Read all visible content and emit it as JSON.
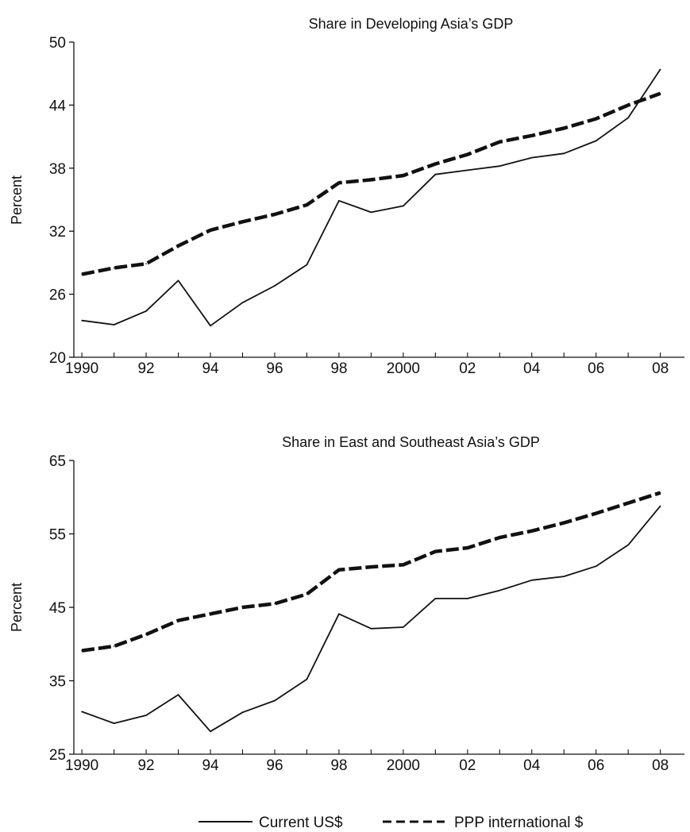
{
  "chart_data": [
    {
      "type": "line",
      "title": "Share in Developing Asia’s GDP",
      "ylabel": "Percent",
      "xlabel": "",
      "x": [
        1990,
        1991,
        1992,
        1993,
        1994,
        1995,
        1996,
        1997,
        1998,
        1999,
        2000,
        2001,
        2002,
        2003,
        2004,
        2005,
        2006,
        2007,
        2008
      ],
      "xtick_values": [
        1990,
        1992,
        1994,
        1996,
        1998,
        2000,
        2002,
        2004,
        2006,
        2008
      ],
      "xtick_labels": [
        "1990",
        "92",
        "94",
        "96",
        "98",
        "2000",
        "02",
        "04",
        "06",
        "08"
      ],
      "ylim": [
        20,
        50
      ],
      "yticks": [
        20,
        26,
        32,
        38,
        44,
        50
      ],
      "series": [
        {
          "name": "Current US$",
          "style": "solid",
          "values": [
            23.5,
            23.1,
            24.4,
            27.3,
            23.0,
            25.2,
            26.8,
            28.8,
            34.9,
            33.8,
            34.4,
            37.4,
            37.8,
            38.2,
            39.0,
            39.4,
            40.6,
            42.8,
            47.4
          ]
        },
        {
          "name": "PPP international $",
          "style": "dashed",
          "values": [
            27.9,
            28.5,
            28.9,
            30.6,
            32.1,
            32.9,
            33.6,
            34.5,
            36.6,
            36.9,
            37.3,
            38.4,
            39.3,
            40.5,
            41.1,
            41.8,
            42.7,
            44.0,
            45.1
          ]
        }
      ]
    },
    {
      "type": "line",
      "title": "Share in East and Southeast Asia’s GDP",
      "ylabel": "Percent",
      "xlabel": "",
      "x": [
        1990,
        1991,
        1992,
        1993,
        1994,
        1995,
        1996,
        1997,
        1998,
        1999,
        2000,
        2001,
        2002,
        2003,
        2004,
        2005,
        2006,
        2007,
        2008
      ],
      "xtick_values": [
        1990,
        1992,
        1994,
        1996,
        1998,
        2000,
        2002,
        2004,
        2006,
        2008
      ],
      "xtick_labels": [
        "1990",
        "92",
        "94",
        "96",
        "98",
        "2000",
        "02",
        "04",
        "06",
        "08"
      ],
      "ylim": [
        25,
        65
      ],
      "yticks": [
        25,
        35,
        45,
        55,
        65
      ],
      "series": [
        {
          "name": "Current US$",
          "style": "solid",
          "values": [
            30.8,
            29.2,
            30.3,
            33.1,
            28.1,
            30.7,
            32.3,
            35.2,
            44.1,
            42.1,
            42.3,
            46.2,
            46.2,
            47.3,
            48.7,
            49.2,
            50.6,
            53.5,
            58.8
          ]
        },
        {
          "name": "PPP international $",
          "style": "dashed",
          "values": [
            39.1,
            39.7,
            41.3,
            43.2,
            44.1,
            45.0,
            45.5,
            46.8,
            50.1,
            50.5,
            50.8,
            52.6,
            53.1,
            54.5,
            55.4,
            56.5,
            57.8,
            59.2,
            60.6
          ]
        }
      ]
    }
  ],
  "legend": {
    "position": "bottom-center",
    "items": [
      {
        "label": "Current US$",
        "style": "solid"
      },
      {
        "label": "PPP international $",
        "style": "dashed"
      }
    ]
  }
}
